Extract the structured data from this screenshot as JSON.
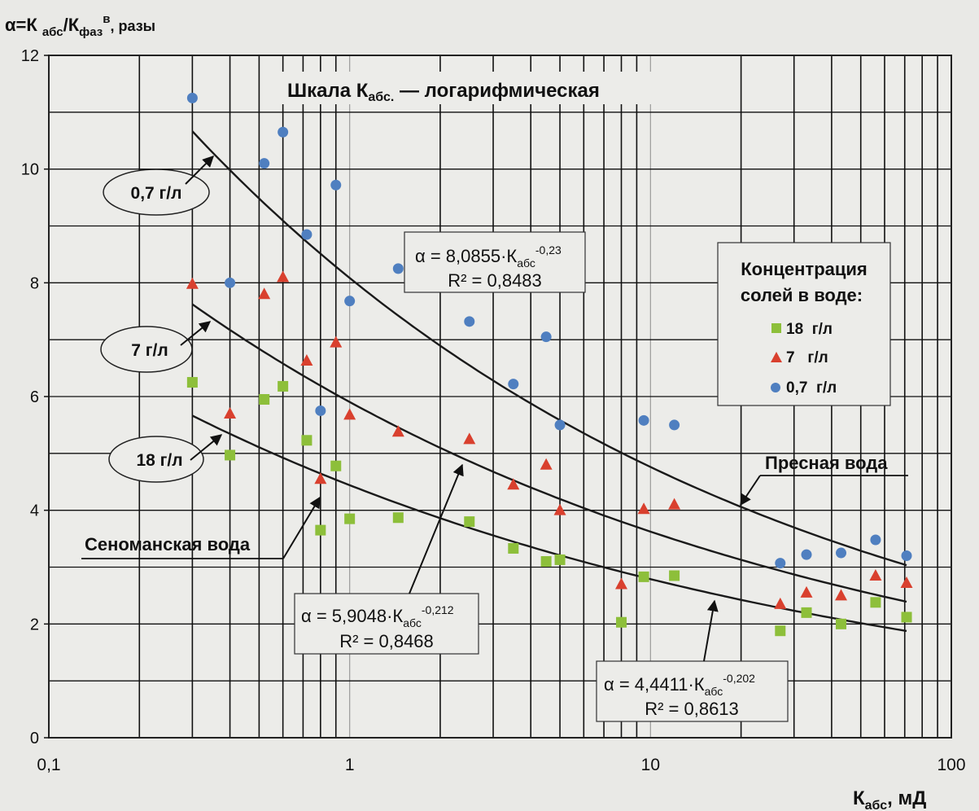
{
  "chart_data": {
    "type": "scatter",
    "x_scale": "log",
    "xlim": [
      0.1,
      100
    ],
    "ylim": [
      0,
      12
    ],
    "x_tick_labels": [
      "0,1",
      "1",
      "10",
      "100"
    ],
    "y_tick_labels": [
      "0",
      "2",
      "4",
      "6",
      "8",
      "10",
      "12"
    ],
    "y_tick_values": [
      0,
      2,
      4,
      6,
      8,
      10,
      12
    ],
    "y_title": {
      "main": "α=К",
      "sub1": "абс",
      "slash": "/К",
      "sub2": "фаз",
      "sup": "в",
      "tail": ", разы"
    },
    "x_title": {
      "main": "К",
      "sub": "абс",
      "tail": ", мД"
    },
    "annotation_title": {
      "main": "Шкала К",
      "sub": "абс.",
      "tail": " — логарифмическая"
    },
    "grid": true,
    "legend": {
      "title_line1": "Концентрация",
      "title_line2": "солей в воде:",
      "position": "right",
      "entries": [
        {
          "label": "18  г/л",
          "marker": "square",
          "color": "#8dbf3a"
        },
        {
          "label": "7   г/л",
          "marker": "triangle",
          "color": "#d9402e"
        },
        {
          "label": "0,7  г/л",
          "marker": "circle",
          "color": "#4f7fc0"
        }
      ]
    },
    "series": [
      {
        "name": "0,7 г/л",
        "marker": "circle",
        "color": "#4f7fc0",
        "x": [
          0.3,
          0.4,
          0.52,
          0.6,
          0.72,
          0.8,
          0.9,
          1.0,
          1.45,
          2.5,
          3.5,
          4.5,
          5.0,
          9.5,
          12.0,
          27.0,
          33.0,
          43.0,
          56.0,
          71.0
        ],
        "y": [
          11.25,
          8.0,
          10.1,
          10.65,
          8.85,
          5.75,
          9.72,
          7.68,
          8.25,
          7.32,
          6.22,
          7.05,
          5.5,
          5.58,
          5.5,
          3.07,
          3.22,
          3.25,
          3.48,
          3.2
        ]
      },
      {
        "name": "7 г/л",
        "marker": "triangle",
        "color": "#d9402e",
        "x": [
          0.3,
          0.4,
          0.52,
          0.6,
          0.72,
          0.8,
          0.9,
          1.0,
          1.45,
          2.5,
          3.5,
          4.5,
          5.0,
          8.0,
          9.5,
          12.0,
          27.0,
          33.0,
          43.0,
          56.0,
          71.0
        ],
        "y": [
          7.98,
          5.7,
          7.8,
          8.1,
          6.63,
          4.55,
          6.95,
          5.68,
          5.38,
          5.25,
          4.45,
          4.8,
          4.0,
          2.7,
          4.02,
          4.1,
          2.35,
          2.55,
          2.5,
          2.85,
          2.72
        ]
      },
      {
        "name": "18 г/л",
        "marker": "square",
        "color": "#8dbf3a",
        "x": [
          0.3,
          0.4,
          0.52,
          0.6,
          0.72,
          0.8,
          0.9,
          1.0,
          1.45,
          2.5,
          3.5,
          4.5,
          5.0,
          8.0,
          9.5,
          12.0,
          27.0,
          33.0,
          43.0,
          56.0,
          71.0
        ],
        "y": [
          6.25,
          4.97,
          5.95,
          6.18,
          5.23,
          3.65,
          4.78,
          3.85,
          3.87,
          3.8,
          3.33,
          3.1,
          3.13,
          2.03,
          2.83,
          2.85,
          1.88,
          2.2,
          2.0,
          2.38,
          2.12
        ]
      }
    ],
    "trendlines": [
      {
        "name": "Пресная вода",
        "a": 8.0855,
        "b": -0.23,
        "x_range": [
          0.3,
          71
        ]
      },
      {
        "name": "7 г/л",
        "a": 5.9048,
        "b": -0.212,
        "x_range": [
          0.3,
          71
        ]
      },
      {
        "name": "Сеноманская вода",
        "a": 4.4411,
        "b": -0.202,
        "x_range": [
          0.3,
          71
        ]
      }
    ],
    "equations": [
      {
        "prefix": "α = 8,0855·К",
        "sub": "абс",
        "sup": "-0,23",
        "r2": "R² = 0,8483"
      },
      {
        "prefix": "α = 5,9048·К",
        "sub": "абс",
        "sup": "-0,212",
        "r2": "R² = 0,8468"
      },
      {
        "prefix": "α = 4,4411·К",
        "sub": "абс",
        "sup": "-0,202",
        "r2": "R² = 0,8613"
      }
    ],
    "curve_labels": [
      "0,7 г/л",
      "7 г/л",
      "18 г/л"
    ],
    "callouts": [
      "Пресная вода",
      "Сеноманская вода"
    ]
  }
}
